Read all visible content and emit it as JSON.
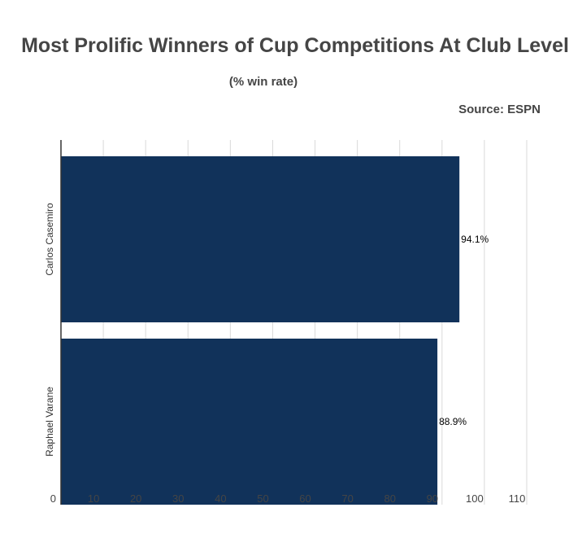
{
  "chart_data": {
    "type": "bar",
    "orientation": "horizontal",
    "title": "Most Prolific Winners of Cup Competitions At Club Level",
    "subtitle": "(% win rate)",
    "source": "Source: ESPN",
    "categories": [
      "Carlos Casemiro",
      "Raphael Varane"
    ],
    "values": [
      94.1,
      88.9
    ],
    "data_labels": [
      "94.1%",
      "88.9%"
    ],
    "xlim": [
      0,
      110
    ],
    "x_ticks": [
      0,
      10,
      20,
      30,
      40,
      50,
      60,
      70,
      80,
      90,
      100,
      110
    ],
    "grid": true,
    "bar_color": "#11325a"
  }
}
